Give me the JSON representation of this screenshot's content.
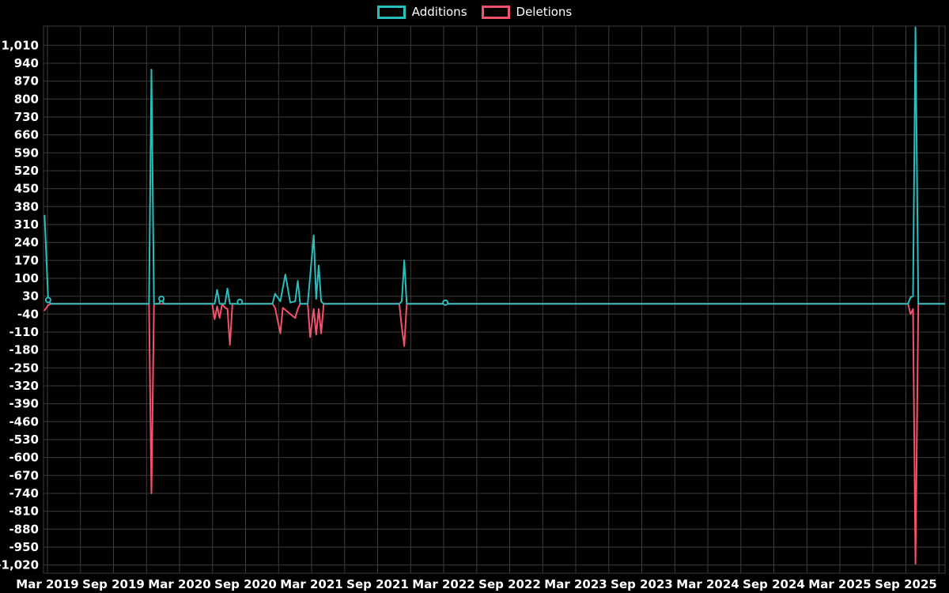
{
  "colors": {
    "background": "#000000",
    "grid": "#3c3c3c",
    "text": "#ffffff",
    "additions": "#2abdbd",
    "deletions": "#f4516c"
  },
  "legend": {
    "items": [
      {
        "label": "Additions",
        "color": "#2abdbd"
      },
      {
        "label": "Deletions",
        "color": "#f4516c"
      }
    ]
  },
  "chart_data": {
    "type": "line",
    "title": "",
    "xlabel": "",
    "ylabel": "",
    "legend_position": "top-center",
    "grid": "on",
    "x_axis": {
      "tick_labels": [
        "Mar 2019",
        "Sep 2019",
        "Mar 2020",
        "Sep 2020",
        "Mar 2021",
        "Sep 2021",
        "Mar 2022",
        "Sep 2022",
        "Mar 2023",
        "Sep 2023",
        "Mar 2024",
        "Sep 2024",
        "Mar 2025",
        "Sep 2025"
      ]
    },
    "y_axis": {
      "range": [
        -1052,
        1085
      ],
      "tick_values": [
        1010,
        940,
        870,
        800,
        730,
        660,
        590,
        520,
        450,
        380,
        310,
        240,
        170,
        100,
        30,
        -40,
        -110,
        -180,
        -250,
        -320,
        -390,
        -460,
        -530,
        -600,
        -670,
        -740,
        -810,
        -880,
        -950,
        -1020
      ],
      "tick_labels": [
        "1,010",
        "940",
        "870",
        "800",
        "730",
        "660",
        "590",
        "520",
        "450",
        "380",
        "310",
        "240",
        "170",
        "100",
        "30",
        "-40",
        "-110",
        "-180",
        "-250",
        "-320",
        "-390",
        "-460",
        "-530",
        "-600",
        "-670",
        "-740",
        "-810",
        "-880",
        "-950",
        "-1,020"
      ]
    },
    "series": [
      {
        "name": "Additions",
        "color": "#2abdbd",
        "points": [
          [
            "2019-02-24",
            345
          ],
          [
            "2019-03-03",
            15
          ],
          [
            "2019-03-10",
            0
          ],
          [
            "2019-12-08",
            0
          ],
          [
            "2019-12-15",
            915
          ],
          [
            "2019-12-22",
            0
          ],
          [
            "2020-01-05",
            0
          ],
          [
            "2020-01-12",
            20
          ],
          [
            "2020-01-19",
            0
          ],
          [
            "2020-06-07",
            0
          ],
          [
            "2020-06-14",
            55
          ],
          [
            "2020-06-21",
            0
          ],
          [
            "2020-07-05",
            0
          ],
          [
            "2020-07-12",
            60
          ],
          [
            "2020-07-19",
            0
          ],
          [
            "2020-08-09",
            0
          ],
          [
            "2020-08-16",
            8
          ],
          [
            "2020-08-23",
            0
          ],
          [
            "2020-11-15",
            0
          ],
          [
            "2020-11-22",
            40
          ],
          [
            "2020-12-06",
            10
          ],
          [
            "2020-12-20",
            115
          ],
          [
            "2021-01-03",
            5
          ],
          [
            "2021-01-17",
            10
          ],
          [
            "2021-01-24",
            90
          ],
          [
            "2021-01-31",
            0
          ],
          [
            "2021-02-21",
            0
          ],
          [
            "2021-03-07",
            268
          ],
          [
            "2021-03-14",
            20
          ],
          [
            "2021-03-21",
            150
          ],
          [
            "2021-03-28",
            10
          ],
          [
            "2021-04-04",
            0
          ],
          [
            "2021-10-31",
            0
          ],
          [
            "2021-11-07",
            10
          ],
          [
            "2021-11-14",
            170
          ],
          [
            "2021-11-21",
            0
          ],
          [
            "2022-02-27",
            0
          ],
          [
            "2022-03-06",
            5
          ],
          [
            "2022-03-13",
            0
          ],
          [
            "2025-09-07",
            0
          ],
          [
            "2025-09-14",
            25
          ],
          [
            "2025-09-21",
            30
          ],
          [
            "2025-09-28",
            1080
          ],
          [
            "2025-10-05",
            0
          ],
          [
            "2025-12-31",
            0
          ]
        ]
      },
      {
        "name": "Deletions",
        "color": "#f4516c",
        "points": [
          [
            "2019-02-24",
            -25
          ],
          [
            "2019-03-03",
            -5
          ],
          [
            "2019-03-10",
            0
          ],
          [
            "2019-12-08",
            0
          ],
          [
            "2019-12-15",
            -740
          ],
          [
            "2019-12-22",
            0
          ],
          [
            "2020-05-31",
            0
          ],
          [
            "2020-06-07",
            -60
          ],
          [
            "2020-06-14",
            -10
          ],
          [
            "2020-06-21",
            -55
          ],
          [
            "2020-06-28",
            0
          ],
          [
            "2020-07-05",
            -15
          ],
          [
            "2020-07-12",
            -20
          ],
          [
            "2020-07-19",
            -160
          ],
          [
            "2020-07-26",
            0
          ],
          [
            "2020-11-15",
            0
          ],
          [
            "2020-11-22",
            -15
          ],
          [
            "2020-12-06",
            -115
          ],
          [
            "2020-12-13",
            -15
          ],
          [
            "2021-01-03",
            -40
          ],
          [
            "2021-01-17",
            -55
          ],
          [
            "2021-01-24",
            -20
          ],
          [
            "2021-01-31",
            0
          ],
          [
            "2021-02-21",
            0
          ],
          [
            "2021-02-28",
            -130
          ],
          [
            "2021-03-07",
            -20
          ],
          [
            "2021-03-14",
            -120
          ],
          [
            "2021-03-21",
            -20
          ],
          [
            "2021-03-28",
            -115
          ],
          [
            "2021-04-04",
            0
          ],
          [
            "2021-10-31",
            0
          ],
          [
            "2021-11-07",
            -90
          ],
          [
            "2021-11-14",
            -165
          ],
          [
            "2021-11-21",
            0
          ],
          [
            "2025-09-07",
            0
          ],
          [
            "2025-09-14",
            -40
          ],
          [
            "2025-09-21",
            -20
          ],
          [
            "2025-09-28",
            -1015
          ],
          [
            "2025-10-05",
            0
          ],
          [
            "2025-12-31",
            0
          ]
        ]
      }
    ],
    "markers": [
      {
        "series": "Additions",
        "date": "2019-03-03"
      },
      {
        "series": "Additions",
        "date": "2020-01-12"
      },
      {
        "series": "Additions",
        "date": "2020-08-16"
      },
      {
        "series": "Additions",
        "date": "2022-03-06"
      }
    ]
  }
}
